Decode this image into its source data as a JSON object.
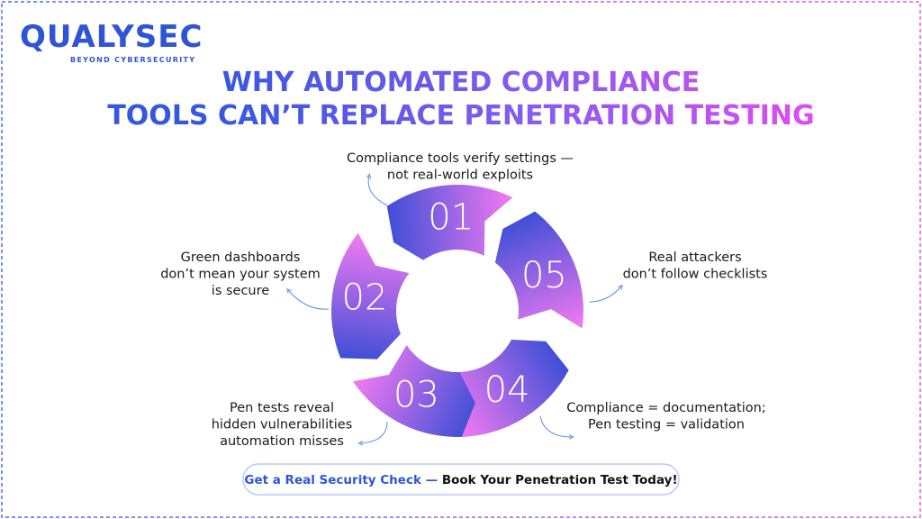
{
  "logo": {
    "name": "QUALYSEC",
    "tagline": "BEYOND CYBERSECURITY"
  },
  "title": {
    "line1": "WHY AUTOMATED COMPLIANCE",
    "line2": "TOOLS CAN’T REPLACE PENETRATION TESTING"
  },
  "steps": [
    {
      "number": "01",
      "text": [
        "Compliance tools verify settings —",
        "not real-world exploits"
      ]
    },
    {
      "number": "02",
      "text": [
        "Green dashboards",
        "don’t mean your system",
        "is secure"
      ]
    },
    {
      "number": "03",
      "text": [
        "Pen tests reveal",
        "hidden vulnerabilities",
        "automation misses"
      ]
    },
    {
      "number": "04",
      "text": [
        "Compliance = documentation;",
        "Pen testing = validation"
      ]
    },
    {
      "number": "05",
      "text": [
        "Real attackers",
        "don’t follow checklists"
      ]
    }
  ],
  "cta": {
    "highlight": "Get a Real Security Check —",
    "text": "Book Your Penetration Test Today!"
  }
}
